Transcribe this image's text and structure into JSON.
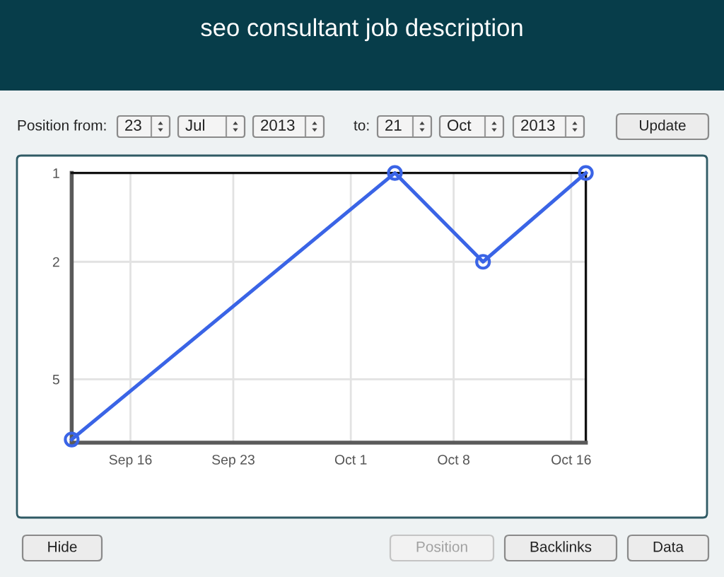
{
  "chart_data": {
    "type": "line",
    "title": "seo consultant job description",
    "x": [
      "2013-09-12",
      "2013-10-04",
      "2013-10-10",
      "2013-10-17"
    ],
    "series": [
      {
        "color": "#3a64e6",
        "values": [
          8,
          1,
          2,
          1
        ]
      }
    ],
    "xlim": [
      "2013-09-12",
      "2013-10-17"
    ],
    "ylim": [
      8.2,
      1
    ],
    "log": true,
    "xticks": [
      {
        "value": "2013-09-16",
        "label": "Sep 16"
      },
      {
        "value": "2013-09-23",
        "label": "Sep 23"
      },
      {
        "value": "2013-10-01",
        "label": "Oct 1"
      },
      {
        "value": "2013-10-08",
        "label": "Oct 8"
      },
      {
        "value": "2013-10-16",
        "label": "Oct 16"
      }
    ],
    "yticks": [
      1,
      2,
      5
    ],
    "grid": true,
    "marker": "circle",
    "line_style": "solid",
    "annotations": [
      "Position from:",
      "23",
      "Jul",
      "2013",
      "to:",
      "21",
      "Oct",
      "2013",
      "Update",
      "Hide",
      "Position",
      "Backlinks",
      "Data"
    ]
  }
}
